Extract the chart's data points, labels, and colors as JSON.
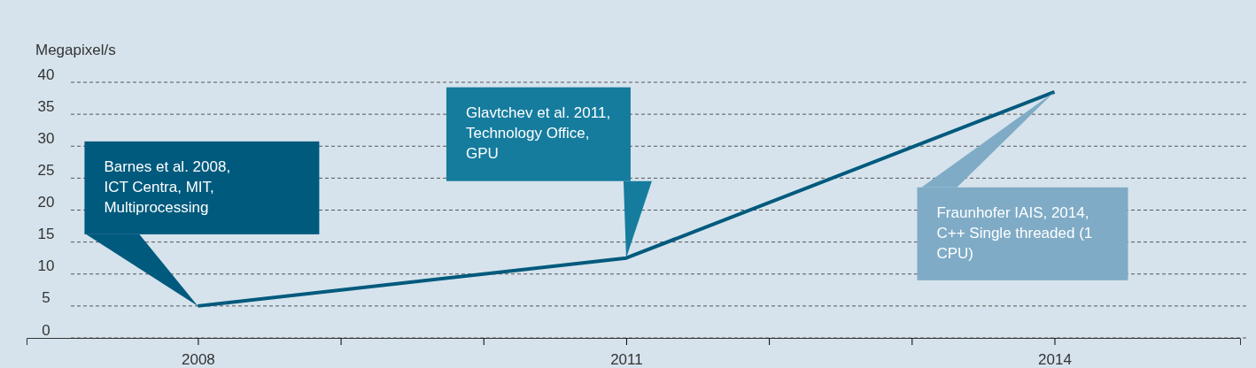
{
  "chart_data": {
    "type": "line",
    "ylabel": "Megapixel/s",
    "x": [
      2008,
      2011,
      2014
    ],
    "series": [
      {
        "color": "#005a7d",
        "values": [
          5,
          12.5,
          38.5
        ]
      }
    ],
    "xlim": [
      2006.8,
      2015.3
    ],
    "xticks": [
      2008,
      {
        "value": 2009,
        "label": null
      },
      {
        "value": 2010,
        "label": null
      },
      2011,
      {
        "value": 2012,
        "label": null
      },
      {
        "value": 2013,
        "label": null
      },
      2014
    ],
    "ylim": [
      0,
      40
    ],
    "yticks": [
      0,
      5,
      10,
      15,
      20,
      25,
      30,
      35,
      40
    ],
    "grid": "y",
    "marker": "none",
    "line_style": "solid",
    "annotations": [
      "Barnes et al. 2008, ICT Centra, MIT, Multiprocessing",
      "Glavtchev et al. 2011, Technology Office, GPU",
      "Fraunhofer IAIS, 2014, C++ Single threaded (1 CPU)"
    ]
  }
}
